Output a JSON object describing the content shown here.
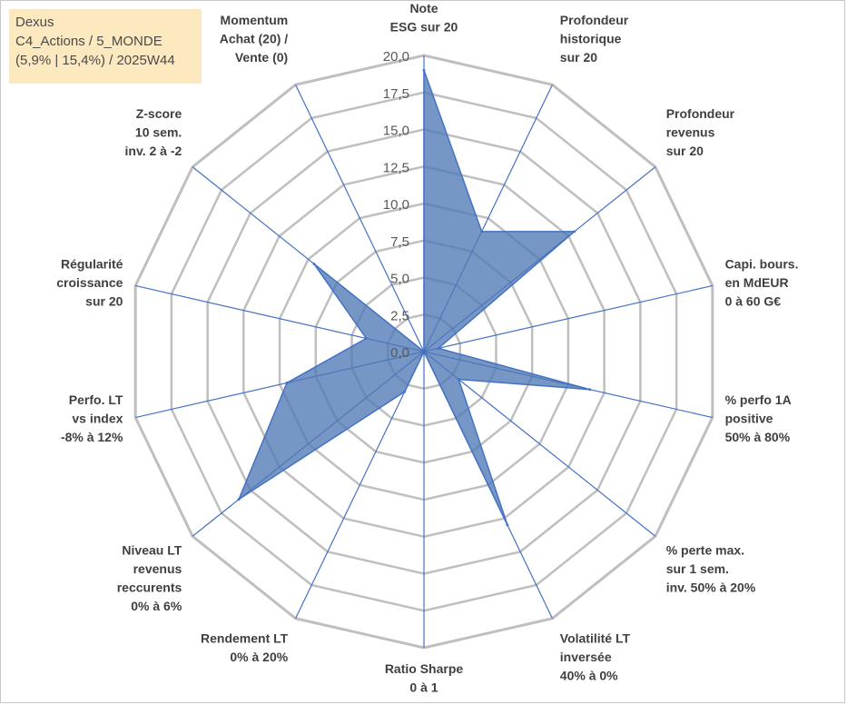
{
  "info": {
    "line1": "Dexus",
    "line2": "C4_Actions / 5_MONDE",
    "line3": "(5,9% | 15,4%) / 2025W44"
  },
  "chart_data": {
    "type": "radar",
    "rmin": 0,
    "rmax": 20,
    "ticks": [
      "0,0",
      "2,5",
      "5,0",
      "7,5",
      "10,0",
      "12,5",
      "15,0",
      "17,5",
      "20,0"
    ],
    "tick_values": [
      0,
      2.5,
      5,
      7.5,
      10,
      12.5,
      15,
      17.5,
      20
    ],
    "gridlines": true,
    "axes": [
      {
        "label": [
          "Note",
          "ESG sur 20"
        ],
        "value": 19
      },
      {
        "label": [
          "Profondeur",
          "historique",
          "sur 20"
        ],
        "value": 9
      },
      {
        "label": [
          "Profondeur",
          "revenus",
          "sur 20"
        ],
        "value": 13
      },
      {
        "label": [
          "Capi. bours.",
          "en MdEUR",
          "0 à 60 G€"
        ],
        "value": 1
      },
      {
        "label": [
          "% perfo 1A",
          "positive",
          "50% à 80%"
        ],
        "value": 11.5
      },
      {
        "label": [
          "% perte max.",
          "sur 1 sem.",
          "inv. 50% à 20%"
        ],
        "value": 3
      },
      {
        "label": [
          "Volatilité LT",
          "inversée",
          "40% à 0%"
        ],
        "value": 13
      },
      {
        "label": [
          "Ratio Sharpe",
          "0 à 1"
        ],
        "value": 0
      },
      {
        "label": [
          "Rendement LT",
          "0% à 20%"
        ],
        "value": 3
      },
      {
        "label": [
          "Niveau LT",
          "revenus",
          "reccurents",
          "0% à 6%"
        ],
        "value": 16
      },
      {
        "label": [
          "Perfo. LT",
          "vs index",
          "-8% à 12%"
        ],
        "value": 9.5
      },
      {
        "label": [
          "Régularité",
          "croissance",
          "sur 20"
        ],
        "value": 4
      },
      {
        "label": [
          "Z-score",
          "10 sem.",
          "inv. 2 à -2"
        ],
        "value": 9.5
      },
      {
        "label": [
          "Momentum",
          "Achat (20) /",
          "Vente (0)"
        ],
        "value": 0
      }
    ],
    "series": [
      {
        "fill": "#4f79b5",
        "fill_opacity": 0.78,
        "stroke": "#4472c4"
      }
    ],
    "colors": {
      "grid": "#bfbfbf",
      "spoke": "#4472c4"
    }
  }
}
